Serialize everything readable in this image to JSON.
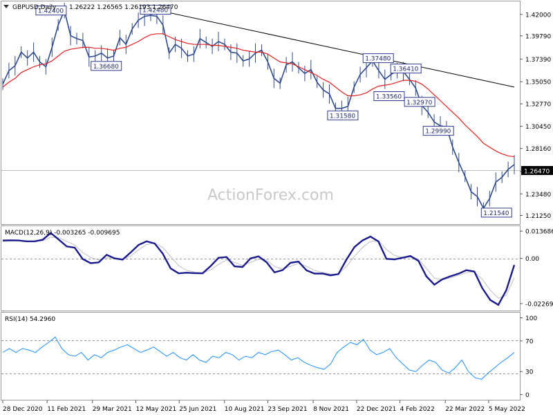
{
  "chart_data": [
    {
      "type": "line",
      "title": "GBPUSD,Daily",
      "ohlc_readout": "1.26222 1.26565 1.26193 1.26470",
      "watermark": "ActionForex.com",
      "price_axis_ticks": [
        "1.42000",
        "1.39790",
        "1.37390",
        "1.35050",
        "1.32770",
        "1.30450",
        "1.28160",
        "1.25820",
        "1.23480",
        "1.21250"
      ],
      "current_price_tag": "1.26470",
      "price_range": [
        1.205,
        1.432
      ],
      "annotations": [
        {
          "label": "1.42400",
          "x": "15 Feb 2021",
          "y": 1.424
        },
        {
          "label": "1.42480",
          "x": "1 Jun 2021",
          "y": 1.4248
        },
        {
          "label": "1.36680",
          "x": "12 Apr 2021",
          "y": 1.3668
        },
        {
          "label": "1.31580",
          "x": "8 Dec 2021",
          "y": 1.3158
        },
        {
          "label": "1.37480",
          "x": "13 Jan 2022",
          "y": 1.3748
        },
        {
          "label": "1.33560",
          "x": "24 Jan 2022",
          "y": 1.3356
        },
        {
          "label": "1.36410",
          "x": "10 Feb 2022",
          "y": 1.3641
        },
        {
          "label": "1.32970",
          "x": "24 Feb 2022",
          "y": 1.3297
        },
        {
          "label": "1.29990",
          "x": "15 Mar 2022",
          "y": 1.2999
        },
        {
          "label": "1.21540",
          "x": "13 May 2022",
          "y": 1.2154
        }
      ],
      "trendline": {
        "from": {
          "x": "1 Jun 2021",
          "y": 1.4248
        },
        "to": {
          "x": "31 May 2022",
          "y": 1.345
        }
      },
      "date_ticks": [
        "28 Dec 2020",
        "11 Feb 2021",
        "29 Mar 2021",
        "12 May 2021",
        "25 Jun 2021",
        "10 Aug 2021",
        "23 Sep 2021",
        "8 Nov 2021",
        "22 Dec 2021",
        "4 Feb 2022",
        "22 Mar 2022",
        "5 May 2022"
      ],
      "series": [
        {
          "color": "#2e4a8c",
          "values": [
            1.348,
            1.362,
            1.367,
            1.381,
            1.375,
            1.381,
            1.371,
            1.366,
            1.386,
            1.409,
            1.424,
            1.398,
            1.395,
            1.393,
            1.376,
            1.377,
            1.38,
            1.375,
            1.377,
            1.396,
            1.389,
            1.405,
            1.414,
            1.418,
            1.419,
            1.418,
            1.409,
            1.38,
            1.389,
            1.385,
            1.377,
            1.379,
            1.395,
            1.391,
            1.387,
            1.392,
            1.389,
            1.381,
            1.38,
            1.372,
            1.374,
            1.38,
            1.383,
            1.371,
            1.354,
            1.349,
            1.368,
            1.371,
            1.365,
            1.359,
            1.363,
            1.35,
            1.342,
            1.338,
            1.323,
            1.323,
            1.325,
            1.345,
            1.358,
            1.365,
            1.372,
            1.362,
            1.353,
            1.358,
            1.362,
            1.361,
            1.353,
            1.344,
            1.326,
            1.319,
            1.309,
            1.305,
            1.304,
            1.283,
            1.267,
            1.253,
            1.237,
            1.232,
            1.22,
            1.23,
            1.247,
            1.252,
            1.26,
            1.265
          ]
        },
        {
          "color": "#e02020",
          "values": [
            1.345,
            1.35,
            1.354,
            1.36,
            1.363,
            1.366,
            1.368,
            1.369,
            1.372,
            1.377,
            1.382,
            1.384,
            1.385,
            1.386,
            1.386,
            1.385,
            1.385,
            1.384,
            1.383,
            1.385,
            1.386,
            1.389,
            1.392,
            1.396,
            1.399,
            1.4,
            1.4,
            1.397,
            1.394,
            1.392,
            1.39,
            1.389,
            1.389,
            1.389,
            1.388,
            1.388,
            1.387,
            1.386,
            1.385,
            1.383,
            1.382,
            1.381,
            1.381,
            1.379,
            1.375,
            1.371,
            1.37,
            1.369,
            1.366,
            1.363,
            1.36,
            1.357,
            1.353,
            1.35,
            1.345,
            1.34,
            1.336,
            1.336,
            1.337,
            1.339,
            1.343,
            1.346,
            1.347,
            1.348,
            1.35,
            1.352,
            1.352,
            1.351,
            1.348,
            1.343,
            1.337,
            1.331,
            1.325,
            1.319,
            1.313,
            1.306,
            1.3,
            1.294,
            1.287,
            1.283,
            1.279,
            1.276,
            1.274,
            1.273
          ]
        }
      ]
    },
    {
      "type": "line",
      "title": "MACD(12,26,9) -0.003265 -0.009695",
      "y_ticks": [
        "0.013686",
        "0.00",
        "-0.022698"
      ],
      "macd_range": [
        -0.0255,
        0.0155
      ],
      "series": [
        {
          "color": "#1a1a8c",
          "values": [
            0.009,
            0.0091,
            0.009,
            0.0086,
            0.0086,
            0.0094,
            0.0128,
            0.0095,
            0.006,
            0.0054,
            -0.0003,
            -0.0024,
            -0.002,
            0.0018,
            0.0,
            -0.0006,
            0.003,
            0.0068,
            0.0086,
            0.0075,
            0.0025,
            -0.005,
            -0.0075,
            -0.0072,
            -0.0074,
            -0.0075,
            -0.0039,
            0.0003,
            0.0007,
            -0.004,
            -0.0043,
            0.0,
            0.001,
            -0.0019,
            -0.007,
            -0.0059,
            -0.0022,
            -0.0016,
            -0.006,
            -0.0076,
            -0.0076,
            -0.0085,
            -0.0079,
            -0.0006,
            0.0057,
            0.009,
            0.011,
            0.0085,
            -0.0002,
            -0.0005,
            0.0003,
            0.0012,
            -0.0012,
            -0.009,
            -0.0132,
            -0.0105,
            -0.009,
            -0.0077,
            -0.0059,
            -0.0066,
            -0.015,
            -0.0209,
            -0.0233,
            -0.016,
            -0.0033
          ]
        },
        {
          "color": "#c0c0c0",
          "values": [
            0.0085,
            0.0088,
            0.0089,
            0.0088,
            0.0087,
            0.0089,
            0.0106,
            0.0104,
            0.0085,
            0.0068,
            0.003,
            0.0005,
            -0.0008,
            0.0003,
            0.0002,
            -0.0002,
            0.0012,
            0.0043,
            0.007,
            0.0078,
            0.0055,
            0.001,
            -0.0036,
            -0.006,
            -0.0068,
            -0.0073,
            -0.0058,
            -0.003,
            -0.0008,
            -0.002,
            -0.0035,
            -0.002,
            -0.0004,
            -0.0008,
            -0.004,
            -0.0055,
            -0.004,
            -0.0025,
            -0.004,
            -0.006,
            -0.007,
            -0.0078,
            -0.0079,
            -0.004,
            0.001,
            0.0055,
            0.0085,
            0.009,
            0.0045,
            0.0015,
            0.0006,
            0.0008,
            -0.0003,
            -0.005,
            -0.0098,
            -0.0108,
            -0.0098,
            -0.0085,
            -0.0072,
            -0.0068,
            -0.0105,
            -0.016,
            -0.02,
            -0.0185,
            -0.0097
          ]
        }
      ]
    },
    {
      "type": "line",
      "title": "RSI(14) 54.2960",
      "y_ticks": [
        "100",
        "70",
        "30",
        "0"
      ],
      "rsi_range": [
        -5,
        105
      ],
      "series": [
        {
          "color": "#1e90ff",
          "values": [
            55,
            60,
            55,
            60,
            58,
            55,
            62,
            68,
            75,
            60,
            52,
            50,
            55,
            45,
            52,
            48,
            55,
            58,
            62,
            65,
            60,
            55,
            58,
            62,
            56,
            50,
            55,
            48,
            45,
            52,
            45,
            42,
            50,
            48,
            55,
            52,
            45,
            50,
            48,
            55,
            52,
            56,
            58,
            52,
            45,
            48,
            42,
            38,
            35,
            33,
            40,
            55,
            62,
            68,
            65,
            72,
            58,
            52,
            55,
            60,
            48,
            40,
            32,
            30,
            38,
            45,
            42,
            32,
            28,
            35,
            45,
            30,
            22,
            20,
            28,
            35,
            42,
            48,
            55
          ]
        }
      ]
    }
  ]
}
